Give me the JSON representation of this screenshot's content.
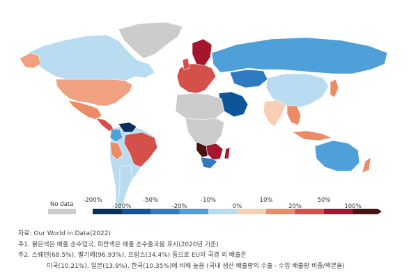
{
  "legend": {
    "no_data_label": "No data",
    "no_data_color": "#cccccc",
    "bins": [
      {
        "color": "#08305e"
      },
      {
        "color": "#0d5599"
      },
      {
        "color": "#2f7ac0"
      },
      {
        "color": "#4f9fd8"
      },
      {
        "color": "#b9dcf0"
      },
      {
        "color": "#f8cfb4"
      },
      {
        "color": "#ec8c66"
      },
      {
        "color": "#d4504a"
      },
      {
        "color": "#a5152e"
      },
      {
        "color": "#4a1210"
      }
    ],
    "upper_labels": [
      "-200%",
      "-50%",
      "-10%",
      "10%",
      "50%"
    ],
    "lower_labels": [
      "-100%",
      "-20%",
      "0%",
      "20%",
      "100%"
    ]
  },
  "map_colors": {
    "ocean": "#ffffff",
    "greenland": "#cccccc",
    "canada": "#b9dcf0",
    "usa": "#f0a182",
    "mexico": "#ec8c66",
    "central_america": "#d4504a",
    "south_america_base": "#b9dcf0",
    "venezuela": "#08305e",
    "colombia": "#4f9fd8",
    "brazil": "#d4504a",
    "peru": "#ec8c66",
    "argentina": "#b9dcf0",
    "europe_red": "#d4504a",
    "scandinavia": "#a5152e",
    "russia": "#4f9fd8",
    "kazakhstan": "#2f7ac0",
    "middle_east": "#0d5599",
    "north_africa": "#cccccc",
    "central_africa": "#cccccc",
    "southern_africa": "#a5152e",
    "south_africa": "#2f7ac0",
    "angola_namibia": "#4a1210",
    "india": "#f8cfb4",
    "china": "#b9dcf0",
    "se_asia": "#ec8c66",
    "australia": "#4f9fd8",
    "japan": "#ec8c66",
    "new_zealand": "#ec8c66"
  },
  "notes": {
    "source": "자료: Our World in Data(2022)",
    "note1": "주1. 붉은색은 배출 순수입국, 파란색은 배출 순수출국을 표시(2020년 기준)",
    "note2a": "주2. 스웨덴(68.5%), 벨기에(96.93%), 프랑스(34.4%) 등으로 EU의 국경 외 배출은",
    "note2b": "미국(10.21%), 일본(13.9%), 한국(10.35%)에 비해 높음 (국내 생산 배출량의 수출 · 수입 배출량 비중/백분율)"
  }
}
